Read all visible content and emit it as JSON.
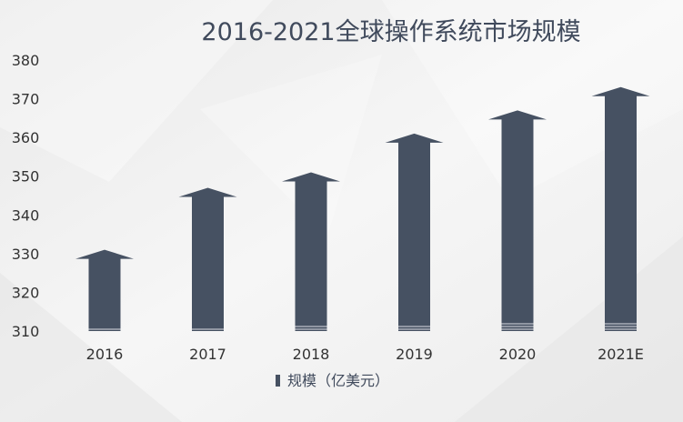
{
  "chart_data": {
    "type": "bar",
    "title": "2016-2021全球操作系统市场规模",
    "categories": [
      "2016",
      "2017",
      "2018",
      "2019",
      "2020",
      "2021E"
    ],
    "series": [
      {
        "name": "规模（亿美元）",
        "values": [
          331,
          347,
          351,
          361,
          367,
          373
        ]
      }
    ],
    "ylim": [
      310,
      380
    ],
    "yticks": [
      310,
      320,
      330,
      340,
      350,
      360,
      370,
      380
    ],
    "xlabel": "",
    "ylabel": "",
    "grid": false,
    "legend": "bottom-center",
    "mark_style": "upward-arrow",
    "colors": {
      "bar": "#465162",
      "text": "#333333",
      "title": "#404a5c",
      "background": "#f3f3f3"
    }
  }
}
